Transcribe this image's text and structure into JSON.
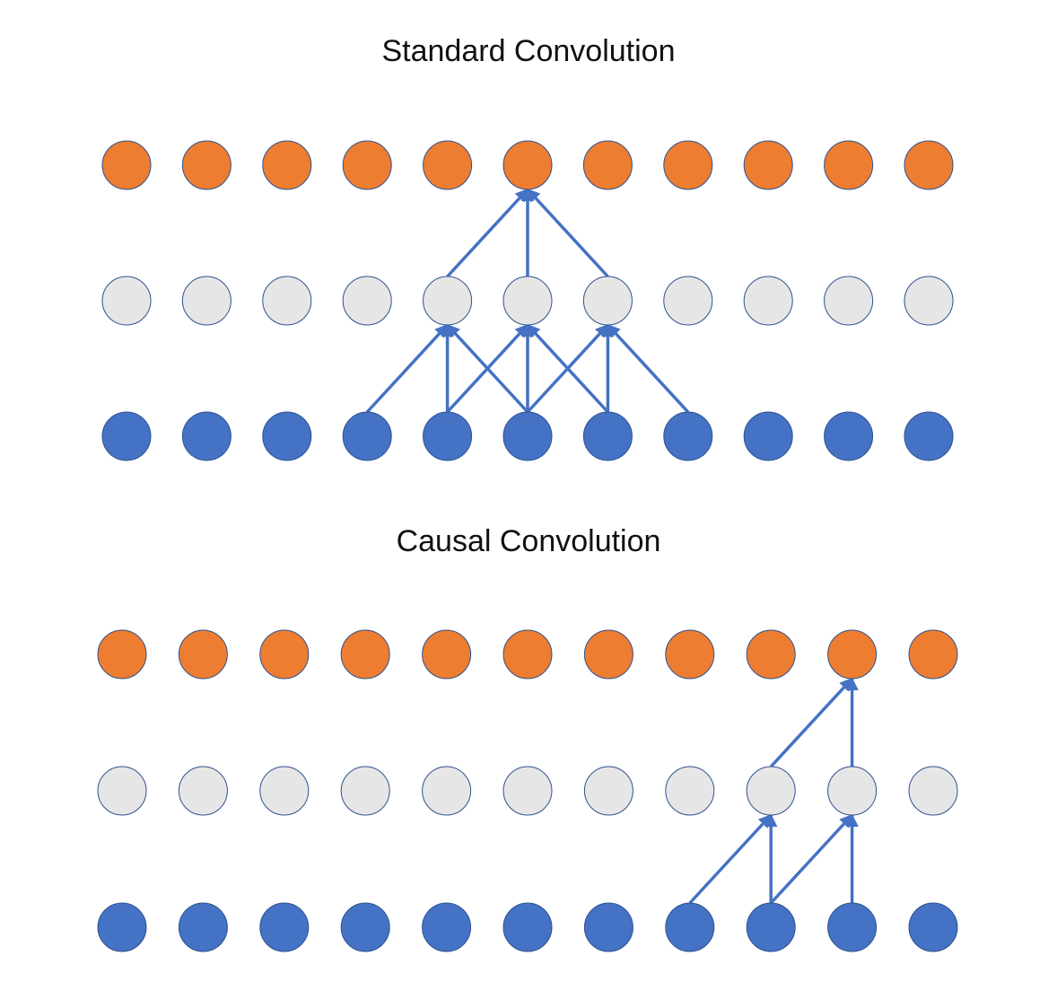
{
  "diagrams": [
    {
      "id": "standard",
      "title": "Standard Convolution",
      "nodes_per_layer": 11,
      "layers": [
        "output",
        "hidden",
        "input"
      ],
      "edges": [
        {
          "from": [
            "hidden",
            4
          ],
          "to": [
            "output",
            5
          ]
        },
        {
          "from": [
            "hidden",
            5
          ],
          "to": [
            "output",
            5
          ]
        },
        {
          "from": [
            "hidden",
            6
          ],
          "to": [
            "output",
            5
          ]
        },
        {
          "from": [
            "input",
            3
          ],
          "to": [
            "hidden",
            4
          ]
        },
        {
          "from": [
            "input",
            4
          ],
          "to": [
            "hidden",
            4
          ]
        },
        {
          "from": [
            "input",
            5
          ],
          "to": [
            "hidden",
            4
          ]
        },
        {
          "from": [
            "input",
            4
          ],
          "to": [
            "hidden",
            5
          ]
        },
        {
          "from": [
            "input",
            5
          ],
          "to": [
            "hidden",
            5
          ]
        },
        {
          "from": [
            "input",
            6
          ],
          "to": [
            "hidden",
            5
          ]
        },
        {
          "from": [
            "input",
            5
          ],
          "to": [
            "hidden",
            6
          ]
        },
        {
          "from": [
            "input",
            6
          ],
          "to": [
            "hidden",
            6
          ]
        },
        {
          "from": [
            "input",
            7
          ],
          "to": [
            "hidden",
            6
          ]
        }
      ]
    },
    {
      "id": "causal",
      "title": "Causal Convolution",
      "nodes_per_layer": 11,
      "layers": [
        "output",
        "hidden",
        "input"
      ],
      "edges": [
        {
          "from": [
            "hidden",
            8
          ],
          "to": [
            "output",
            9
          ]
        },
        {
          "from": [
            "hidden",
            9
          ],
          "to": [
            "output",
            9
          ]
        },
        {
          "from": [
            "input",
            7
          ],
          "to": [
            "hidden",
            8
          ]
        },
        {
          "from": [
            "input",
            8
          ],
          "to": [
            "hidden",
            8
          ]
        },
        {
          "from": [
            "input",
            8
          ],
          "to": [
            "hidden",
            9
          ]
        },
        {
          "from": [
            "input",
            9
          ],
          "to": [
            "hidden",
            9
          ]
        }
      ]
    }
  ],
  "colors": {
    "output": "#ED7D31",
    "hidden": "#E7E6E6",
    "input": "#4472C4",
    "edge": "#4472C4",
    "node_stroke": "#2F528F"
  }
}
